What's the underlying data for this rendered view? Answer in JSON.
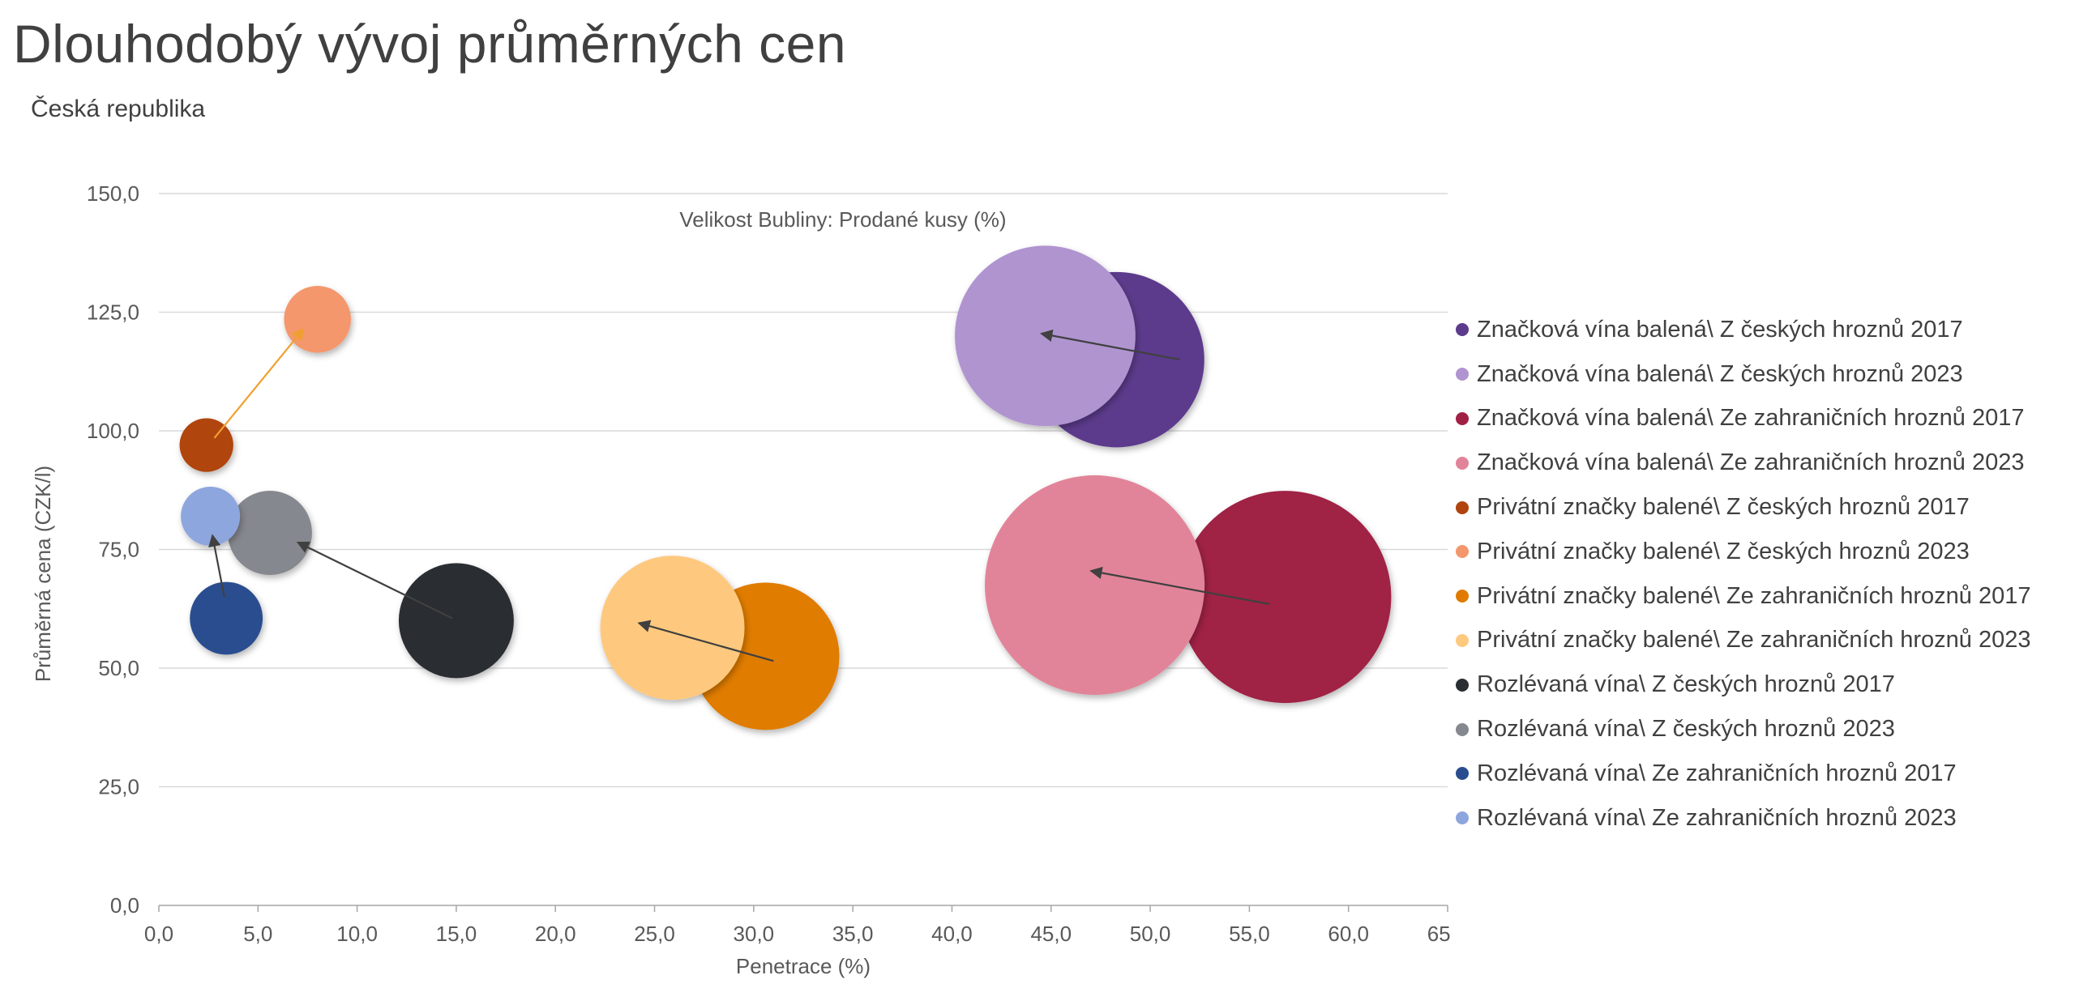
{
  "title": "Dlouhodobý vývoj průměrných cen",
  "subtitle": "Česká republika",
  "chart_data": {
    "type": "scatter",
    "subtype": "bubble",
    "annotation": "Velikost Bubliny: Prodané kusy (%)",
    "xlabel": "Penetrace (%)",
    "ylabel": "Průměrná cena (CZK/l)",
    "xlim": [
      0,
      65
    ],
    "ylim": [
      0,
      150
    ],
    "x_ticks": [
      0,
      5,
      10,
      15,
      20,
      25,
      30,
      35,
      40,
      45,
      50,
      55,
      60,
      65
    ],
    "y_ticks": [
      0,
      25,
      50,
      75,
      100,
      125,
      150
    ],
    "x_tick_labels": [
      "0,0",
      "5,0",
      "10,0",
      "15,0",
      "20,0",
      "25,0",
      "30,0",
      "35,0",
      "40,0",
      "45,0",
      "50,0",
      "55,0",
      "60,0",
      "65,0"
    ],
    "y_tick_labels": [
      "0,0",
      "25,0",
      "50,0",
      "75,0",
      "100,0",
      "125,0",
      "150,0"
    ],
    "grid": true,
    "legend_position": "right",
    "series": [
      {
        "name": "Značková vína balená\\ Z českých hroznů 2017",
        "x": 48.3,
        "y": 115,
        "size": 10.5,
        "color": "#5C3A8C"
      },
      {
        "name": "Značková vína balená\\ Z českých hroznů 2023",
        "x": 44.7,
        "y": 120,
        "size": 11.3,
        "color": "#B094D0"
      },
      {
        "name": "Značková vína balená\\ Ze zahraničních hroznů 2017",
        "x": 56.8,
        "y": 65,
        "size": 17.0,
        "color": "#A02045"
      },
      {
        "name": "Značková vína balená\\ Ze zahraničních hroznů 2023",
        "x": 47.2,
        "y": 67.5,
        "size": 18.5,
        "color": "#E28499"
      },
      {
        "name": "Privátní značky balené\\ Z českých hroznů 2017",
        "x": 2.4,
        "y": 97,
        "size": 0.1,
        "color": "#B0440C"
      },
      {
        "name": "Privátní značky balené\\ Z českých hroznů 2023",
        "x": 8.0,
        "y": 123.5,
        "size": 0.4,
        "color": "#F4976C"
      },
      {
        "name": "Privátní značky balené\\ Ze zahraničních hroznů 2017",
        "x": 30.6,
        "y": 52.5,
        "size": 6.6,
        "color": "#E07B00"
      },
      {
        "name": "Privátní značky balené\\ Ze zahraničních hroznů 2023",
        "x": 25.9,
        "y": 58.5,
        "size": 6.2,
        "color": "#FEC97E"
      },
      {
        "name": "Rozlévaná vína\\ Z českých hroznů 2017",
        "x": 15.0,
        "y": 60,
        "size": 3.2,
        "color": "#2A2E33"
      },
      {
        "name": "Rozlévaná vína\\ Z českých hroznů 2023",
        "x": 5.6,
        "y": 78.5,
        "size": 1.1,
        "color": "#85888E"
      },
      {
        "name": "Rozlévaná vína\\ Ze zahraničních hroznů 2017",
        "x": 3.4,
        "y": 60.5,
        "size": 0.6,
        "color": "#2A4D8F"
      },
      {
        "name": "Rozlévaná vína\\ Ze zahraničních hroznů 2023",
        "x": 2.6,
        "y": 82,
        "size": 0.2,
        "color": "#8EA6DE"
      }
    ],
    "arrows": [
      {
        "from": [
          51.5,
          115
        ],
        "to": [
          44.5,
          120.5
        ],
        "color": "#404040"
      },
      {
        "from": [
          56.0,
          63.5
        ],
        "to": [
          47.0,
          70.5
        ],
        "color": "#404040"
      },
      {
        "from": [
          31.0,
          51.5
        ],
        "to": [
          24.2,
          59.5
        ],
        "color": "#404040"
      },
      {
        "from": [
          14.8,
          60.5
        ],
        "to": [
          7.0,
          76.5
        ],
        "color": "#404040"
      },
      {
        "from": [
          3.3,
          65
        ],
        "to": [
          2.7,
          78
        ],
        "color": "#404040"
      },
      {
        "from": [
          2.8,
          98.5
        ],
        "to": [
          7.3,
          121.5
        ],
        "color": "#F0A030"
      }
    ]
  }
}
